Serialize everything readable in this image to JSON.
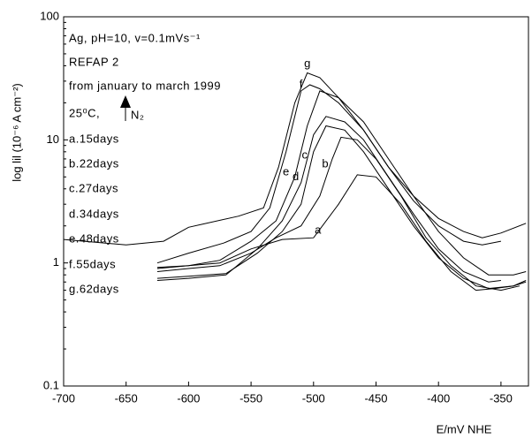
{
  "chart_data": {
    "type": "line",
    "y_label": "log lil (10⁻⁶ A   cm⁻²)",
    "x_label": "E/mV NHE",
    "annotations": [
      "Ag, pH=10, v=0.1mVs⁻¹",
      "REFAP 2",
      "from january to march 1999",
      "25⁰C,",
      "N₂",
      "a.15days",
      "b.22days",
      "c.27days",
      "d.34days",
      "e.48days",
      "f.55days",
      "g.62days"
    ],
    "xlim": [
      -700,
      -328
    ],
    "xticks": [
      -700,
      -650,
      -600,
      -550,
      -500,
      -450,
      -400,
      -350
    ],
    "ylim": [
      0.1,
      100
    ],
    "yticks": [
      0.1,
      1,
      10,
      100
    ],
    "y_log": true,
    "series": [
      {
        "name": "a",
        "color": "#000000",
        "x": [
          -625,
          -600,
          -575,
          -550,
          -525,
          -500,
          -480,
          -465,
          -450,
          -430,
          -410,
          -390,
          -370,
          -355,
          -340,
          -330
        ],
        "values": [
          0.92,
          0.95,
          1.0,
          1.3,
          1.55,
          1.6,
          3.0,
          5.2,
          5.0,
          3.0,
          1.5,
          0.85,
          0.6,
          0.62,
          0.65,
          0.7
        ]
      },
      {
        "name": "b",
        "color": "#000000",
        "x": [
          -625,
          -600,
          -575,
          -550,
          -530,
          -510,
          -495,
          -485,
          -478,
          -465,
          -450,
          -430,
          -410,
          -390,
          -370,
          -350,
          -335
        ],
        "values": [
          0.85,
          0.9,
          0.95,
          1.2,
          1.6,
          2.0,
          3.5,
          7,
          10.5,
          10,
          7,
          3.5,
          1.6,
          0.95,
          0.65,
          0.6,
          0.65
        ]
      },
      {
        "name": "c",
        "color": "#000000",
        "x": [
          -625,
          -600,
          -570,
          -545,
          -525,
          -510,
          -500,
          -490,
          -475,
          -460,
          -440,
          -420,
          -400,
          -380,
          -360,
          -340,
          -330
        ],
        "values": [
          0.75,
          0.78,
          0.82,
          1.2,
          1.8,
          3.0,
          8,
          13,
          12,
          8,
          4,
          2,
          1.1,
          0.75,
          0.62,
          0.65,
          0.72
        ]
      },
      {
        "name": "d",
        "color": "#000000",
        "x": [
          -625,
          -600,
          -570,
          -545,
          -525,
          -510,
          -500,
          -490,
          -475,
          -460,
          -440,
          -420,
          -400,
          -380,
          -360,
          -350
        ],
        "values": [
          0.72,
          0.75,
          0.8,
          1.3,
          2.2,
          4.5,
          11,
          15.5,
          14,
          10,
          5,
          2.5,
          1.3,
          0.85,
          0.7,
          0.72
        ]
      },
      {
        "name": "e",
        "color": "#000000",
        "x": [
          -625,
          -600,
          -575,
          -550,
          -530,
          -515,
          -505,
          -495,
          -480,
          -460,
          -440,
          -420,
          -400,
          -380,
          -360,
          -340,
          -330
        ],
        "values": [
          0.9,
          0.95,
          1.05,
          1.5,
          2.2,
          5,
          13,
          25,
          22,
          14,
          7,
          3.5,
          1.8,
          1.1,
          0.8,
          0.8,
          0.85
        ]
      },
      {
        "name": "f",
        "color": "#000000",
        "x": [
          -625,
          -600,
          -572,
          -550,
          -535,
          -522,
          -510,
          -503,
          -495,
          -480,
          -460,
          -440,
          -420,
          -400,
          -380,
          -365,
          -350
        ],
        "values": [
          1.0,
          1.2,
          1.45,
          1.8,
          2.8,
          8,
          25,
          28,
          26,
          20,
          12,
          6,
          3.2,
          2.0,
          1.5,
          1.4,
          1.5
        ]
      },
      {
        "name": "g",
        "color": "#000000",
        "x": [
          -700,
          -650,
          -620,
          -600,
          -560,
          -540,
          -528,
          -515,
          -505,
          -495,
          -480,
          -460,
          -440,
          -420,
          -400,
          -380,
          -365,
          -350,
          -330
        ],
        "values": [
          1.55,
          1.4,
          1.5,
          1.95,
          2.4,
          2.8,
          6,
          20,
          35,
          32,
          22,
          12,
          6,
          3.5,
          2.3,
          1.8,
          1.6,
          1.75,
          2.1
        ]
      }
    ]
  }
}
